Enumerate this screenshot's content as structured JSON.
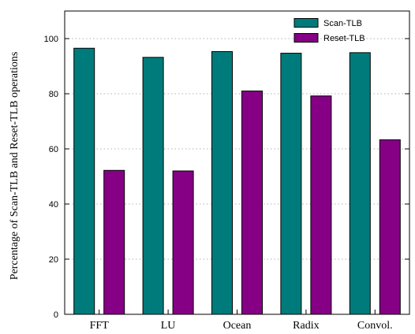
{
  "chart_data": {
    "type": "bar",
    "categories": [
      "FFT",
      "LU",
      "Ocean",
      "Radix",
      "Convol."
    ],
    "series": [
      {
        "name": "Scan-TLB",
        "values": [
          96.5,
          93.2,
          95.3,
          94.7,
          94.9
        ],
        "color": "#007b7b"
      },
      {
        "name": "Reset-TLB",
        "values": [
          52.2,
          52.0,
          81.0,
          79.2,
          63.3
        ],
        "color": "#850085"
      }
    ],
    "title": "",
    "xlabel": "",
    "ylabel": "Percentage of Scan-TLB and Reset-TLB operations",
    "ylim": [
      0,
      110
    ],
    "yticks": [
      0,
      20,
      40,
      60,
      80,
      100
    ],
    "grid": "horizontal dotted",
    "legend_position": "top-right"
  }
}
